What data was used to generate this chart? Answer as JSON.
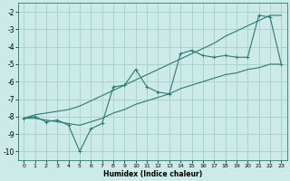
{
  "xlabel": "Humidex (Indice chaleur)",
  "bg_color": "#cceae8",
  "grid_color": "#aad4d0",
  "line_color": "#2a7a70",
  "xlim": [
    -0.5,
    23.5
  ],
  "ylim": [
    -10.5,
    -1.5
  ],
  "yticks": [
    -10,
    -9,
    -8,
    -7,
    -6,
    -5,
    -4,
    -3,
    -2
  ],
  "xticks": [
    0,
    1,
    2,
    3,
    4,
    5,
    6,
    7,
    8,
    9,
    10,
    11,
    12,
    13,
    14,
    15,
    16,
    17,
    18,
    19,
    20,
    21,
    22,
    23
  ],
  "main_x": [
    0,
    1,
    2,
    3,
    4,
    5,
    6,
    7,
    8,
    9,
    10,
    11,
    12,
    13,
    14,
    15,
    16,
    17,
    18,
    19,
    20,
    21,
    22,
    23
  ],
  "main_y": [
    -8.1,
    -8.0,
    -8.3,
    -8.2,
    -8.5,
    -10.0,
    -8.7,
    -8.4,
    -6.3,
    -6.2,
    -5.3,
    -6.3,
    -6.6,
    -6.7,
    -4.4,
    -4.2,
    -4.5,
    -4.6,
    -4.5,
    -4.6,
    -4.6,
    -2.2,
    -2.3,
    -5.0
  ],
  "upper_x": [
    0,
    1,
    2,
    3,
    4,
    5,
    6,
    7,
    8,
    9,
    10,
    11,
    12,
    13,
    14,
    15,
    16,
    17,
    18,
    19,
    20,
    21,
    22,
    23
  ],
  "upper_y": [
    -8.1,
    -7.9,
    -7.8,
    -7.7,
    -7.6,
    -7.4,
    -7.1,
    -6.8,
    -6.5,
    -6.2,
    -5.9,
    -5.6,
    -5.3,
    -5.0,
    -4.7,
    -4.4,
    -4.1,
    -3.8,
    -3.4,
    -3.1,
    -2.8,
    -2.5,
    -2.2,
    -2.2
  ],
  "lower_x": [
    0,
    1,
    2,
    3,
    4,
    5,
    6,
    7,
    8,
    9,
    10,
    11,
    12,
    13,
    14,
    15,
    16,
    17,
    18,
    19,
    20,
    21,
    22,
    23
  ],
  "lower_y": [
    -8.1,
    -8.1,
    -8.2,
    -8.3,
    -8.4,
    -8.5,
    -8.3,
    -8.1,
    -7.8,
    -7.6,
    -7.3,
    -7.1,
    -6.9,
    -6.7,
    -6.4,
    -6.2,
    -6.0,
    -5.8,
    -5.6,
    -5.5,
    -5.3,
    -5.2,
    -5.0,
    -5.0
  ]
}
